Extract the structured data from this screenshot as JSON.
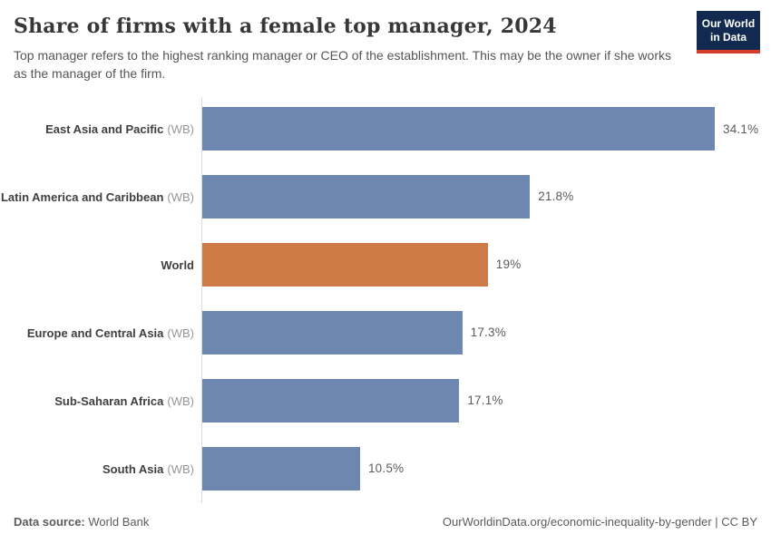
{
  "header": {
    "title": "Share of firms with a female top manager, 2024",
    "subtitle": "Top manager refers to the highest ranking manager or CEO of the establishment. This may be the owner if she works as the manager of the firm.",
    "logo": {
      "line1": "Our World",
      "line2": "in Data"
    }
  },
  "chart_data": {
    "type": "bar",
    "orientation": "horizontal",
    "title": "Share of firms with a female top manager, 2024",
    "categories": [
      "East Asia and Pacific",
      "Latin America and Caribbean",
      "World",
      "Europe and Central Asia",
      "Sub-Saharan Africa",
      "South Asia"
    ],
    "category_suffixes": [
      "(WB)",
      "(WB)",
      "",
      "(WB)",
      "(WB)",
      "(WB)"
    ],
    "values": [
      34.1,
      21.8,
      19,
      17.3,
      17.1,
      10.5
    ],
    "value_labels": [
      "34.1%",
      "21.8%",
      "19%",
      "17.3%",
      "17.1%",
      "10.5%"
    ],
    "unit": "%",
    "xlim": [
      0,
      34.1
    ],
    "grid": false,
    "highlight_category": "World",
    "bar_color": "#6e87b1",
    "highlight_color": "#cd7a47",
    "axis_color": "#dadada"
  },
  "footer": {
    "source_label": "Data source:",
    "source_value": "World Bank",
    "attribution": "OurWorldinData.org/economic-inequality-by-gender | CC BY"
  }
}
